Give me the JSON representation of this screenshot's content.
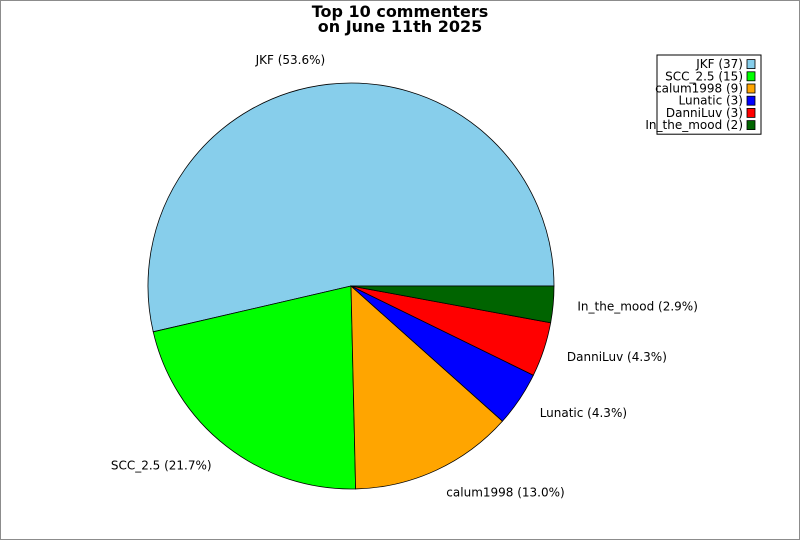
{
  "chart_data": {
    "type": "pie",
    "title_lines": [
      "Top 10 commenters",
      "on June 11th 2025"
    ],
    "slices": [
      {
        "name": "JKF",
        "value": 37,
        "percent_label": "JKF (53.6%)",
        "legend_label": "JKF (37)",
        "color": "#87ceeb"
      },
      {
        "name": "SCC_2.5",
        "value": 15,
        "percent_label": "SCC_2.5 (21.7%)",
        "legend_label": "SCC_2.5 (15)",
        "color": "#00ff00"
      },
      {
        "name": "calum1998",
        "value": 9,
        "percent_label": "calum1998 (13.0%)",
        "legend_label": "calum1998 (9)",
        "color": "#ffa500"
      },
      {
        "name": "Lunatic",
        "value": 3,
        "percent_label": "Lunatic (4.3%)",
        "legend_label": "Lunatic (3)",
        "color": "#0000ff"
      },
      {
        "name": "DanniLuv",
        "value": 3,
        "percent_label": "DanniLuv (4.3%)",
        "legend_label": "DanniLuv (3)",
        "color": "#ff0000"
      },
      {
        "name": "In_the_mood",
        "value": 2,
        "percent_label": "In_the_mood (2.9%)",
        "legend_label": "In_the_mood (2)",
        "color": "#006400"
      }
    ],
    "start_angle_deg": 0,
    "direction": "clockwise",
    "legend_position": "top-right"
  }
}
